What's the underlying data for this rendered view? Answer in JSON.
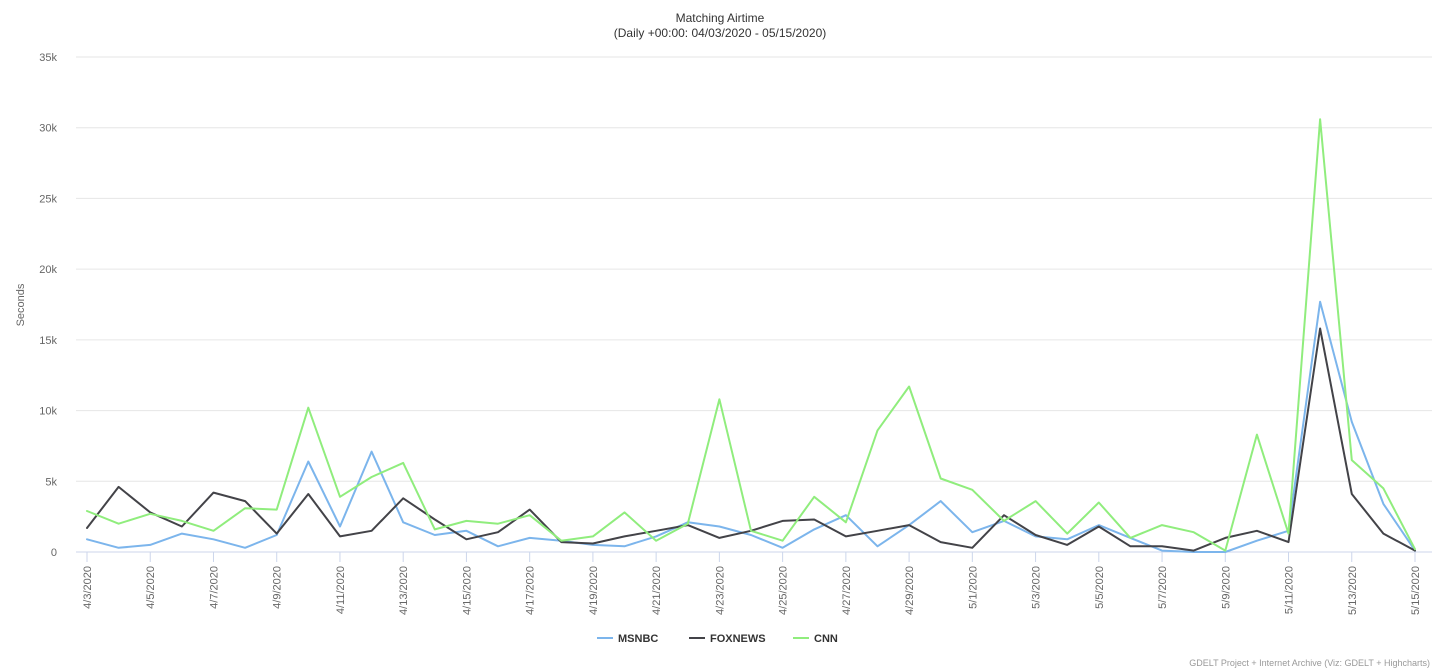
{
  "chart_data": {
    "type": "line",
    "title": "Matching Airtime",
    "subtitle": "(Daily +00:00: 04/03/2020 - 05/15/2020)",
    "ylabel": "Seconds",
    "xlabel": "",
    "ylim": [
      0,
      35000
    ],
    "yticks": [
      0,
      5000,
      10000,
      15000,
      20000,
      25000,
      30000,
      35000
    ],
    "ytick_labels": [
      "0",
      "5k",
      "10k",
      "15k",
      "20k",
      "25k",
      "30k",
      "35k"
    ],
    "x": [
      "4/3/2020",
      "4/4/2020",
      "4/5/2020",
      "4/6/2020",
      "4/7/2020",
      "4/8/2020",
      "4/9/2020",
      "4/10/2020",
      "4/11/2020",
      "4/12/2020",
      "4/13/2020",
      "4/14/2020",
      "4/15/2020",
      "4/16/2020",
      "4/17/2020",
      "4/18/2020",
      "4/19/2020",
      "4/20/2020",
      "4/21/2020",
      "4/22/2020",
      "4/23/2020",
      "4/24/2020",
      "4/25/2020",
      "4/26/2020",
      "4/27/2020",
      "4/28/2020",
      "4/29/2020",
      "4/30/2020",
      "5/1/2020",
      "5/2/2020",
      "5/3/2020",
      "5/4/2020",
      "5/5/2020",
      "5/6/2020",
      "5/7/2020",
      "5/8/2020",
      "5/9/2020",
      "5/10/2020",
      "5/11/2020",
      "5/12/2020",
      "5/13/2020",
      "5/14/2020",
      "5/15/2020"
    ],
    "x_tick_labels": [
      "4/3/2020",
      "4/5/2020",
      "4/7/2020",
      "4/9/2020",
      "4/11/2020",
      "4/13/2020",
      "4/15/2020",
      "4/17/2020",
      "4/19/2020",
      "4/21/2020",
      "4/23/2020",
      "4/25/2020",
      "4/27/2020",
      "4/29/2020",
      "5/1/2020",
      "5/3/2020",
      "5/5/2020",
      "5/7/2020",
      "5/9/2020",
      "5/11/2020",
      "5/13/2020",
      "5/15/2020"
    ],
    "grid": true,
    "legend_position": "bottom-center",
    "series": [
      {
        "name": "MSNBC",
        "color": "#7cb5ec",
        "values": [
          900,
          300,
          500,
          1300,
          900,
          300,
          1200,
          6400,
          1800,
          7100,
          2100,
          1200,
          1500,
          400,
          1000,
          800,
          500,
          400,
          1100,
          2100,
          1800,
          1200,
          300,
          1600,
          2600,
          400,
          1900,
          3600,
          1400,
          2200,
          1100,
          900,
          1900,
          1000,
          100,
          0,
          0,
          800,
          1500,
          17700,
          9200,
          3400,
          100
        ]
      },
      {
        "name": "FOXNEWS",
        "color": "#434348",
        "values": [
          1700,
          4600,
          2800,
          1800,
          4200,
          3600,
          1300,
          4100,
          1100,
          1500,
          3800,
          2300,
          900,
          1400,
          3000,
          700,
          600,
          1100,
          1500,
          1900,
          1000,
          1500,
          2200,
          2300,
          1100,
          1500,
          1900,
          700,
          300,
          2600,
          1200,
          500,
          1800,
          400,
          400,
          100,
          1000,
          1500,
          700,
          15800,
          4100,
          1300,
          100
        ]
      },
      {
        "name": "CNN",
        "color": "#90ed7d",
        "values": [
          2900,
          2000,
          2700,
          2200,
          1500,
          3100,
          3000,
          10200,
          3900,
          5300,
          6300,
          1600,
          2200,
          2000,
          2600,
          800,
          1100,
          2800,
          800,
          2000,
          10800,
          1500,
          800,
          3900,
          2100,
          8600,
          11700,
          5200,
          4400,
          2200,
          3600,
          1300,
          3500,
          1000,
          1900,
          1400,
          100,
          8300,
          1300,
          30600,
          6500,
          4500,
          200
        ]
      }
    ],
    "credits": "GDELT Project + Internet Archive (Viz: GDELT + Highcharts)"
  }
}
